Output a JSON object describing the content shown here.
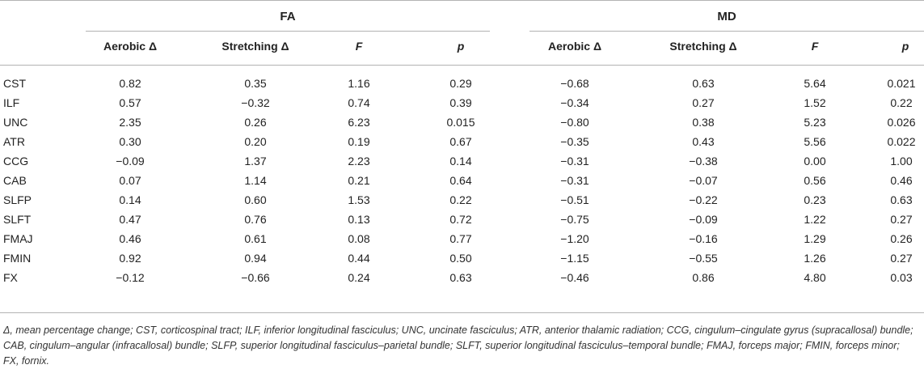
{
  "groups": {
    "fa": "FA",
    "md": "MD"
  },
  "columns": [
    "Aerobic Δ",
    "Stretching Δ",
    "F",
    "p",
    "Aerobic Δ",
    "Stretching Δ",
    "F",
    "p"
  ],
  "rows": [
    {
      "label": "CST",
      "values": [
        "0.82",
        "0.35",
        "1.16",
        "0.29",
        "−0.68",
        "0.63",
        "5.64",
        "0.021"
      ]
    },
    {
      "label": "ILF",
      "values": [
        "0.57",
        "−0.32",
        "0.74",
        "0.39",
        "−0.34",
        "0.27",
        "1.52",
        "0.22"
      ]
    },
    {
      "label": "UNC",
      "values": [
        "2.35",
        "0.26",
        "6.23",
        "0.015",
        "−0.80",
        "0.38",
        "5.23",
        "0.026"
      ]
    },
    {
      "label": "ATR",
      "values": [
        "0.30",
        "0.20",
        "0.19",
        "0.67",
        "−0.35",
        "0.43",
        "5.56",
        "0.022"
      ]
    },
    {
      "label": "CCG",
      "values": [
        "−0.09",
        "1.37",
        "2.23",
        "0.14",
        "−0.31",
        "−0.38",
        "0.00",
        "1.00"
      ]
    },
    {
      "label": "CAB",
      "values": [
        "0.07",
        "1.14",
        "0.21",
        "0.64",
        "−0.31",
        "−0.07",
        "0.56",
        "0.46"
      ]
    },
    {
      "label": "SLFP",
      "values": [
        "0.14",
        "0.60",
        "1.53",
        "0.22",
        "−0.51",
        "−0.22",
        "0.23",
        "0.63"
      ]
    },
    {
      "label": "SLFT",
      "values": [
        "0.47",
        "0.76",
        "0.13",
        "0.72",
        "−0.75",
        "−0.09",
        "1.22",
        "0.27"
      ]
    },
    {
      "label": "FMAJ",
      "values": [
        "0.46",
        "0.61",
        "0.08",
        "0.77",
        "−1.20",
        "−0.16",
        "1.29",
        "0.26"
      ]
    },
    {
      "label": "FMIN",
      "values": [
        "0.92",
        "0.94",
        "0.44",
        "0.50",
        "−1.15",
        "−0.55",
        "1.26",
        "0.27"
      ]
    },
    {
      "label": "FX",
      "values": [
        "−0.12",
        "−0.66",
        "0.24",
        "0.63",
        "−0.46",
        "0.86",
        "4.80",
        "0.03"
      ]
    }
  ],
  "footnote": "Δ, mean percentage change; CST, corticospinal tract; ILF, inferior longitudinal fasciculus; UNC, uncinate fasciculus; ATR, anterior thalamic radiation; CCG, cingulum–cingulate gyrus (supracallosal) bundle; CAB, cingulum–angular (infracallosal) bundle; SLFP, superior longitudinal fasciculus–parietal bundle; SLFT, superior longitudinal fasciculus–temporal bundle; FMAJ, forceps major; FMIN, forceps minor; FX, fornix."
}
